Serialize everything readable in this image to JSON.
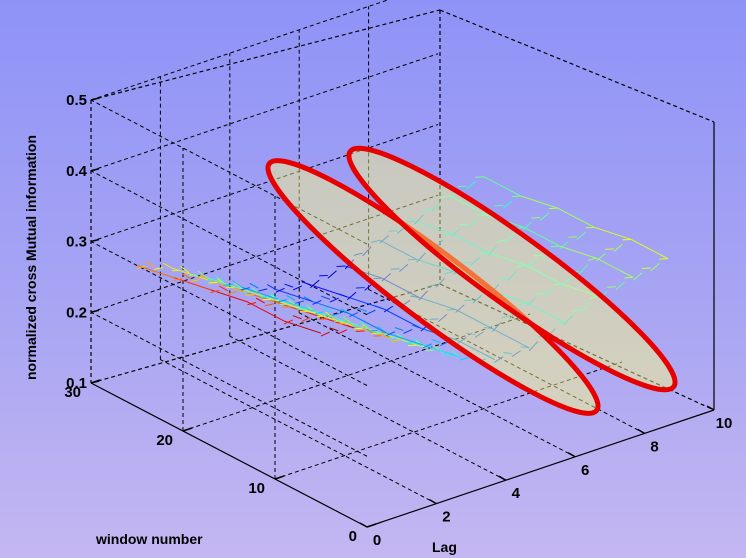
{
  "chart_data": {
    "type": "surface-3d",
    "zlabel": "normalized cross Mutual information",
    "ylabel": "window number",
    "xlabel": "Lag",
    "xlim": [
      0,
      10
    ],
    "ylim": [
      0,
      30
    ],
    "zlim": [
      0.1,
      0.5
    ],
    "x_ticks": [
      "0",
      "2",
      "4",
      "6",
      "8",
      "10"
    ],
    "y_ticks": [
      "0",
      "10",
      "20",
      "30"
    ],
    "z_ticks": [
      "0.1",
      "0.2",
      "0.3",
      "0.4",
      "0.5"
    ],
    "grid": true,
    "lag": [
      0,
      1,
      2,
      3,
      4,
      5,
      6,
      7,
      8,
      9,
      10
    ],
    "surface": [
      {
        "lag": 0,
        "nmi": [
          0.34,
          0.33,
          0.33,
          0.32,
          0.31,
          0.3
        ]
      },
      {
        "lag": 1,
        "nmi": [
          0.33,
          0.32,
          0.31,
          0.3,
          0.29,
          0.28
        ]
      },
      {
        "lag": 2,
        "nmi": [
          0.3,
          0.29,
          0.28,
          0.27,
          0.26,
          0.25
        ]
      },
      {
        "lag": 3,
        "nmi": [
          0.27,
          0.26,
          0.25,
          0.24,
          0.23,
          0.22
        ]
      },
      {
        "lag": 4,
        "nmi": [
          0.24,
          0.23,
          0.22,
          0.22,
          0.21,
          0.2
        ]
      },
      {
        "lag": 5,
        "nmi": [
          0.22,
          0.22,
          0.21,
          0.21,
          0.2,
          0.19
        ]
      },
      {
        "lag": 6,
        "nmi": [
          0.22,
          0.22,
          0.22,
          0.21,
          0.21,
          0.2
        ]
      },
      {
        "lag": 7,
        "nmi": [
          0.24,
          0.24,
          0.23,
          0.23,
          0.22,
          0.22
        ]
      },
      {
        "lag": 8,
        "nmi": [
          0.26,
          0.25,
          0.25,
          0.24,
          0.24,
          0.23
        ]
      },
      {
        "lag": 9,
        "nmi": [
          0.27,
          0.27,
          0.26,
          0.26,
          0.25,
          0.25
        ]
      },
      {
        "lag": 10,
        "nmi": [
          0.28,
          0.28,
          0.27,
          0.27,
          0.26,
          0.26
        ]
      }
    ],
    "windows": [
      5,
      9,
      13,
      17,
      21,
      25
    ],
    "highlights": [
      {
        "shape": "ellipse",
        "color": "#e60000",
        "fill": "#ffff80",
        "around_lag": 4
      },
      {
        "shape": "ellipse",
        "color": "#e60000",
        "fill": "#ffff80",
        "around_lag": 6
      }
    ]
  }
}
